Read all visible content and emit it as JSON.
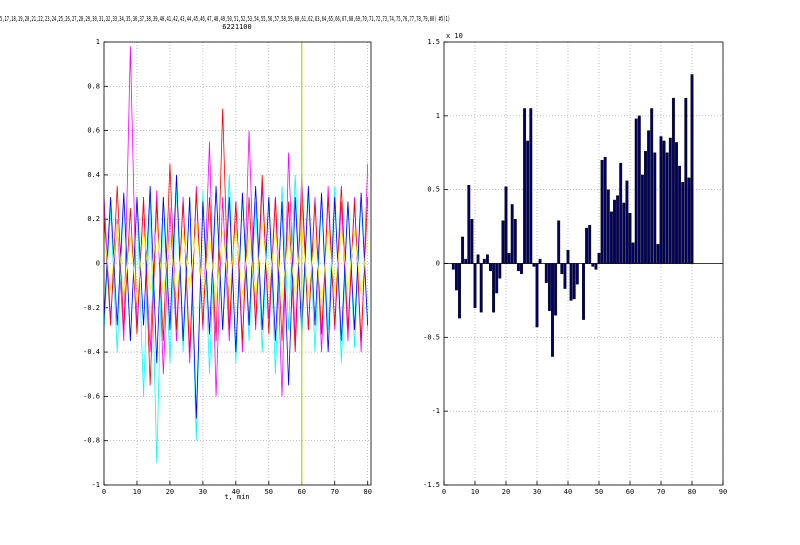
{
  "chart_data": [
    {
      "type": "line",
      "title": "5,17,18,19,20,21,22,23,24,25,26,27,28,29,30,31,32,33,34,35,36,37,38,39,40,41,42,43,44,45,46,47,48,49,50,51,52,53,54,55,56,57,58,59,60,61,62,63,64,65,66,67,68,69,70,71,72,73,74,75,76,77,78,79,80) #5(1)",
      "subtitle": "6221100",
      "x_label": "t, min",
      "xlim": [
        0,
        81
      ],
      "xticks": [
        0,
        10,
        20,
        30,
        40,
        50,
        60,
        70,
        80
      ],
      "ylim": [
        -1,
        1
      ],
      "yticks": [
        -1,
        -0.8,
        -0.6,
        -0.4,
        -0.2,
        0,
        0.2,
        0.4,
        0.6,
        0.8,
        1
      ],
      "grid": true,
      "x": [
        0,
        2,
        4,
        6,
        8,
        10,
        12,
        14,
        16,
        18,
        20,
        22,
        24,
        26,
        28,
        30,
        32,
        34,
        36,
        38,
        40,
        42,
        44,
        46,
        48,
        50,
        52,
        54,
        56,
        58,
        60,
        62,
        64,
        66,
        68,
        70,
        72,
        74,
        76,
        78,
        80
      ],
      "series": [
        {
          "color": "#ff00ff",
          "values": [
            0.3,
            -0.25,
            0.2,
            -0.35,
            0.98,
            -0.3,
            0.28,
            -0.4,
            0.33,
            -0.5,
            0.25,
            -0.35,
            0.3,
            -0.45,
            0.35,
            -0.3,
            0.55,
            -0.6,
            0.3,
            -0.35,
            0.28,
            -0.4,
            0.6,
            -0.3,
            0.35,
            -0.25,
            0.3,
            -0.6,
            0.5,
            -0.35,
            0.4,
            -0.3,
            0.3,
            -0.4,
            0.35,
            -0.3,
            0.28,
            -0.35,
            0.3,
            -0.4,
            0.45
          ]
        },
        {
          "color": "#00ffff",
          "values": [
            -0.3,
            0.25,
            -0.4,
            0.3,
            -0.35,
            0.28,
            -0.6,
            0.32,
            -0.9,
            0.3,
            -0.45,
            0.35,
            -0.4,
            0.3,
            -0.8,
            0.33,
            -0.5,
            0.35,
            -0.3,
            0.4,
            -0.45,
            0.3,
            -0.35,
            0.28,
            -0.4,
            0.3,
            -0.5,
            0.35,
            -0.3,
            0.4,
            -0.35,
            0.32,
            -0.4,
            0.3,
            -0.3,
            0.35,
            -0.45,
            0.28,
            -0.38,
            0.3,
            -0.3
          ]
        },
        {
          "color": "#ff0000",
          "values": [
            0.22,
            -0.28,
            0.35,
            -0.3,
            0.25,
            -0.32,
            0.3,
            -0.55,
            0.28,
            -0.35,
            0.45,
            -0.3,
            0.28,
            -0.4,
            0.32,
            -0.28,
            0.3,
            -0.35,
            0.7,
            -0.3,
            0.28,
            -0.35,
            0.3,
            -0.28,
            0.4,
            -0.32,
            0.3,
            -0.35,
            0.28,
            -0.4,
            0.35,
            -0.3,
            0.28,
            -0.32,
            0.3,
            -0.28,
            0.35,
            -0.3,
            0.28,
            -0.35,
            0.3
          ]
        },
        {
          "color": "#0000ff",
          "values": [
            -0.25,
            0.3,
            -0.28,
            0.32,
            -0.35,
            0.3,
            -0.28,
            0.35,
            -0.45,
            0.3,
            -0.3,
            0.4,
            -0.35,
            0.3,
            -0.7,
            0.28,
            -0.32,
            0.35,
            -0.3,
            0.3,
            -0.4,
            0.32,
            -0.28,
            0.35,
            -0.3,
            0.3,
            -0.35,
            0.28,
            -0.55,
            0.3,
            -0.3,
            0.35,
            -0.28,
            0.32,
            -0.4,
            0.3,
            -0.35,
            0.28,
            -0.3,
            0.32,
            -0.28
          ]
        },
        {
          "color": "#ffff00",
          "values": [
            0.15,
            -0.12,
            0.18,
            -0.15,
            0.12,
            -0.18,
            0.15,
            -0.12,
            0.17,
            -0.14,
            0.13,
            -0.16,
            0.15,
            -0.12,
            0.18,
            -0.15,
            0.12,
            -0.17,
            0.15,
            -0.13,
            0.16,
            -0.14,
            0.12,
            -0.15,
            0.18,
            -0.12,
            0.15,
            -0.16,
            0.13,
            -0.14,
            0.17,
            -0.15,
            0.12,
            -0.18,
            0.15,
            -0.13,
            0.16,
            -0.12,
            0.15,
            -0.14,
            0.13
          ]
        }
      ],
      "vline": 60,
      "vline_color": "#aadd00"
    },
    {
      "type": "bar",
      "y_multiplier": "x 10",
      "xlim": [
        0,
        90
      ],
      "xticks": [
        0,
        10,
        20,
        30,
        40,
        50,
        60,
        70,
        80,
        90
      ],
      "ylim": [
        -1.5,
        1.5
      ],
      "yticks": [
        -1.5,
        -1,
        -0.5,
        0,
        0.5,
        1,
        1.5
      ],
      "grid": true,
      "color": "#000066",
      "x": [
        1,
        2,
        3,
        4,
        5,
        6,
        7,
        8,
        9,
        10,
        11,
        12,
        13,
        14,
        15,
        16,
        17,
        18,
        19,
        20,
        21,
        22,
        23,
        24,
        25,
        26,
        27,
        28,
        29,
        30,
        31,
        32,
        33,
        34,
        35,
        36,
        37,
        38,
        39,
        40,
        41,
        42,
        43,
        44,
        45,
        46,
        47,
        48,
        49,
        50,
        51,
        52,
        53,
        54,
        55,
        56,
        57,
        58,
        59,
        60,
        61,
        62,
        63,
        64,
        65,
        66,
        67,
        68,
        69,
        70,
        71,
        72,
        73,
        74,
        75,
        76,
        77,
        78,
        79,
        80
      ],
      "values": [
        0,
        0,
        -0.04,
        -0.18,
        -0.37,
        0.18,
        0.03,
        0.53,
        0.3,
        -0.3,
        0.06,
        -0.33,
        0.03,
        0.06,
        -0.05,
        -0.33,
        -0.2,
        -0.1,
        0.29,
        0.52,
        0.07,
        0.4,
        0.3,
        -0.05,
        -0.07,
        1.05,
        0.83,
        1.05,
        -0.02,
        -0.43,
        0.03,
        0,
        -0.13,
        -0.32,
        -0.63,
        -0.35,
        0.29,
        -0.07,
        -0.17,
        0.09,
        -0.25,
        -0.24,
        -0.14,
        0,
        -0.38,
        0.24,
        0.26,
        -0.02,
        -0.04,
        0.07,
        0.7,
        0.72,
        0.5,
        0.35,
        0.43,
        0.46,
        0.68,
        0.41,
        0.56,
        0.34,
        0.14,
        0.98,
        1.0,
        0.6,
        0.76,
        0.9,
        1.05,
        0.75,
        0.13,
        0.86,
        0.83,
        0.75,
        0.85,
        1.12,
        0.82,
        0.66,
        0.55,
        1.12,
        0.58,
        1.28
      ]
    }
  ]
}
